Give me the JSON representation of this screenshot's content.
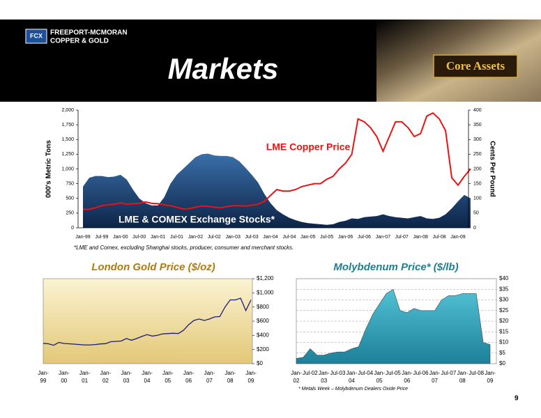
{
  "header": {
    "company_line1": "FREEPORT-MCMORAN",
    "company_line2": "COPPER & GOLD",
    "title": "Markets",
    "badge": "Core Assets"
  },
  "chart_data": [
    {
      "type": "combo",
      "y_label": "000's Metric Tons",
      "y2_label": "Cents Per Pound",
      "note": "*LME and Comex, excluding Shanghai stocks, producer, consumer and merchant stocks.",
      "categories": [
        "Jan-99",
        null,
        null,
        "Jul-99",
        null,
        null,
        "Jan-00",
        null,
        null,
        "Jul-00",
        null,
        null,
        "Jan-01",
        null,
        null,
        "Jul-01",
        null,
        null,
        "Jan-02",
        null,
        null,
        "Jul-02",
        null,
        null,
        "Jan-03",
        null,
        null,
        "Jul-03",
        null,
        null,
        "Jan-04",
        null,
        null,
        "Jul-04",
        null,
        null,
        "Jan-05",
        null,
        null,
        "Jul-05",
        null,
        null,
        "Jan-06",
        null,
        null,
        "Jul-06",
        null,
        null,
        "Jan-07",
        null,
        null,
        "Jul-07",
        null,
        null,
        "Jan-08",
        null,
        null,
        "Jul-08",
        null,
        null,
        "Jan-09",
        null,
        null
      ],
      "series": [
        {
          "name": "LME & COMEX Exchange Stocks*",
          "type": "area",
          "color": "#1c3f73",
          "values": [
            700,
            850,
            880,
            880,
            860,
            870,
            900,
            820,
            650,
            500,
            420,
            380,
            380,
            520,
            750,
            900,
            1000,
            1100,
            1200,
            1250,
            1260,
            1230,
            1220,
            1220,
            1200,
            1130,
            1020,
            900,
            770,
            580,
            420,
            300,
            230,
            170,
            130,
            100,
            80,
            70,
            60,
            50,
            60,
            100,
            120,
            160,
            150,
            180,
            190,
            200,
            230,
            200,
            180,
            170,
            160,
            180,
            200,
            160,
            150,
            170,
            230,
            330,
            450,
            560,
            500
          ]
        },
        {
          "name": "LME Copper Price",
          "type": "line",
          "axis": "y2",
          "color": "#ee1111",
          "values": [
            62,
            63,
            68,
            75,
            78,
            80,
            85,
            80,
            82,
            83,
            88,
            83,
            82,
            78,
            75,
            70,
            64,
            65,
            70,
            74,
            73,
            70,
            68,
            72,
            75,
            75,
            74,
            77,
            80,
            90,
            110,
            130,
            125,
            125,
            130,
            140,
            145,
            150,
            150,
            165,
            175,
            200,
            220,
            250,
            370,
            360,
            340,
            310,
            260,
            310,
            360,
            360,
            340,
            310,
            320,
            380,
            390,
            370,
            330,
            170,
            145,
            175,
            200
          ]
        }
      ],
      "ylim": [
        0,
        2000
      ],
      "yticks": [
        0,
        250,
        500,
        750,
        {
          "value": 1000,
          "label": "1,000"
        },
        {
          "value": 1250,
          "label": "1,250"
        },
        {
          "value": 1500,
          "label": "1,500"
        },
        {
          "value": 1750,
          "label": "1,750"
        },
        {
          "value": 2000,
          "label": "2,000"
        }
      ],
      "y2lim": [
        0,
        400
      ],
      "y2ticks": [
        0,
        50,
        100,
        150,
        200,
        250,
        300,
        350,
        400
      ],
      "grid": false
    },
    {
      "type": "line",
      "title": "London Gold Price ($/oz)",
      "categories": [
        "Jan-99",
        null,
        null,
        null,
        "Jan-00",
        null,
        null,
        null,
        "Jan-01",
        null,
        null,
        null,
        "Jan-02",
        null,
        null,
        null,
        "Jan-03",
        null,
        null,
        null,
        "Jan-04",
        null,
        null,
        null,
        "Jan-05",
        null,
        null,
        null,
        "Jan-06",
        null,
        null,
        null,
        "Jan-07",
        null,
        null,
        null,
        "Jan-08",
        null,
        null,
        null,
        "Jan-09"
      ],
      "series": [
        {
          "name": "London Gold Price",
          "type": "line",
          "color": "#1a1a7a",
          "values": [
            287,
            280,
            260,
            300,
            285,
            280,
            275,
            270,
            265,
            265,
            270,
            278,
            282,
            310,
            315,
            320,
            355,
            330,
            355,
            385,
            410,
            390,
            400,
            420,
            425,
            430,
            425,
            470,
            550,
            610,
            630,
            610,
            630,
            660,
            665,
            800,
            900,
            900,
            925,
            750,
            900
          ]
        }
      ],
      "ylim": [
        0,
        1200
      ],
      "yticks": [
        {
          "value": 0,
          "label": "$0"
        },
        {
          "value": 200,
          "label": "$200"
        },
        {
          "value": 400,
          "label": "$400"
        },
        {
          "value": 600,
          "label": "$600"
        },
        {
          "value": 800,
          "label": "$800"
        },
        {
          "value": 1000,
          "label": "$1,000"
        },
        {
          "value": 1200,
          "label": "$1,200"
        }
      ],
      "grid": false
    },
    {
      "type": "area",
      "title": "Molybdenum Price* ($/lb)",
      "note": "* Metals Week – Molybdenum Dealers Oxide Price",
      "categories": [
        "Jan-02",
        null,
        "Jul-02",
        null,
        "Jan-03",
        null,
        "Jul-03",
        null,
        "Jan-04",
        null,
        "Jul-04",
        null,
        "Jan-05",
        null,
        "Jul-05",
        null,
        "Jan-06",
        null,
        "Jul-06",
        null,
        "Jan-07",
        null,
        "Jul-07",
        null,
        "Jan-08",
        null,
        "Jul-08",
        null,
        "Jan-09"
      ],
      "series": [
        {
          "name": "Molybdenum Price",
          "type": "area",
          "color": "#36a9bf",
          "values": [
            2.5,
            3,
            7,
            4,
            4,
            5,
            5.5,
            5.5,
            7,
            8,
            16,
            23,
            28,
            33,
            35,
            25,
            24,
            26,
            25,
            25,
            25,
            30,
            32,
            32,
            33,
            33,
            33,
            10,
            9
          ]
        }
      ],
      "ylim": [
        0,
        40
      ],
      "yticks": [
        {
          "value": 0,
          "label": "$0"
        },
        {
          "value": 5,
          "label": "$5"
        },
        {
          "value": 10,
          "label": "$10"
        },
        {
          "value": 15,
          "label": "$15"
        },
        {
          "value": 20,
          "label": "$20"
        },
        {
          "value": 25,
          "label": "$25"
        },
        {
          "value": 30,
          "label": "$30"
        },
        {
          "value": 35,
          "label": "$35"
        },
        {
          "value": 40,
          "label": "$40"
        }
      ],
      "grid": true
    }
  ],
  "footer": {
    "page": 9
  }
}
